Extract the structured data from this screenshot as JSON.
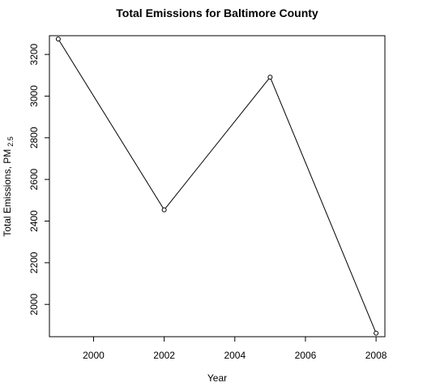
{
  "chart_data": {
    "type": "line",
    "title": "Total Emissions for Baltimore County",
    "xlabel": "Year",
    "ylabel": "Total Emissions, PM",
    "ylabel_subscript": "2.5",
    "x": [
      1999,
      2002,
      2005,
      2008
    ],
    "series": [
      {
        "values": [
          3274,
          2454,
          3091,
          1862
        ]
      }
    ],
    "xlim": [
      1998.75,
      2008.25
    ],
    "ylim": [
      1845,
      3290
    ],
    "xticks": [
      2000,
      2002,
      2004,
      2006,
      2008
    ],
    "yticks": [
      2000,
      2200,
      2400,
      2600,
      2800,
      3000,
      3200
    ],
    "xtick_labels": [
      "2000",
      "2002",
      "2004",
      "2006",
      "2008"
    ],
    "ytick_labels": [
      "2000",
      "2200",
      "2400",
      "2600",
      "2800",
      "3000",
      "3200"
    ],
    "grid": false,
    "line_color": "#000000",
    "marker": "open-circle"
  }
}
